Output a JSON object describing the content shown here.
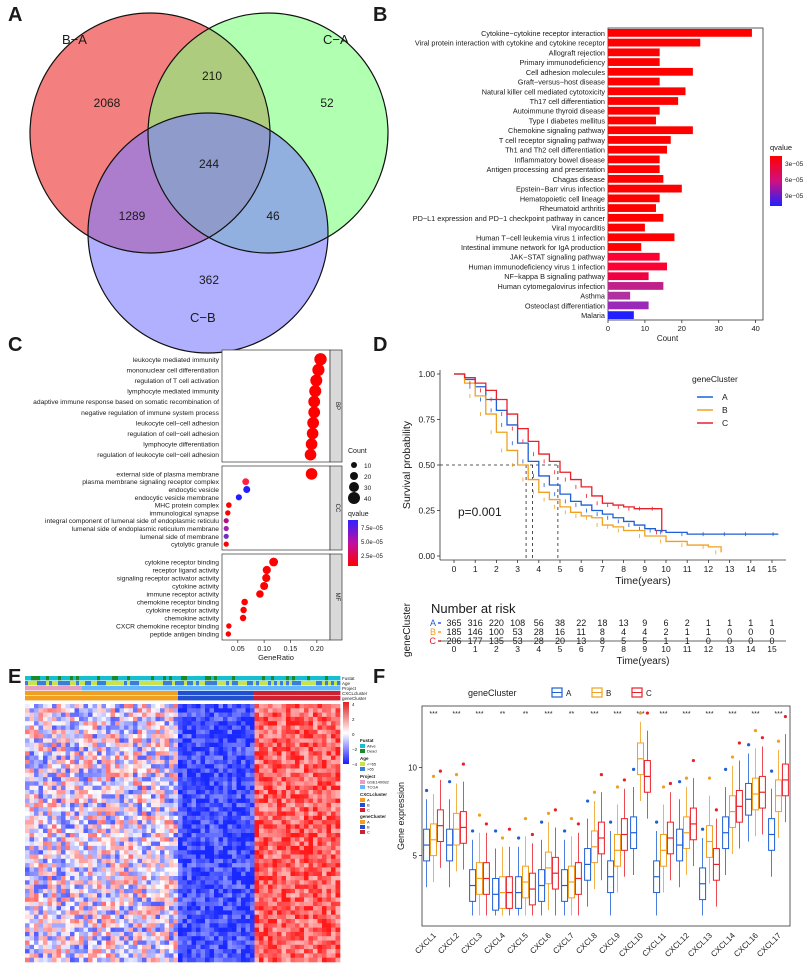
{
  "panels": {
    "a": "A",
    "b": "B",
    "c": "C",
    "d": "D",
    "e": "E",
    "f": "F"
  },
  "colors": {
    "clusterA": "#1f5fd6",
    "clusterB": "#f0a020",
    "clusterC": "#e8202a",
    "vennBA": "#f26d6d",
    "vennCA": "#7dff7d",
    "vennCB": "#7b7bff"
  },
  "chart_data": [
    {
      "id": "venn",
      "type": "venn",
      "sets": [
        "B−A",
        "C−A",
        "C−B"
      ],
      "regions": {
        "only_BA": 2068,
        "BA_CA": 210,
        "only_CA": 52,
        "BA_CB": 1289,
        "all": 244,
        "CA_CB": 46,
        "only_CB": 362
      }
    },
    {
      "id": "kegg",
      "type": "bar",
      "orientation": "horizontal",
      "xlabel": "Count",
      "xticks": [
        0,
        10,
        20,
        30,
        40
      ],
      "xlim": [
        0,
        42
      ],
      "legend_title": "qvalue",
      "legend_ticks": [
        "3e−05",
        "6e−05",
        "9e−05"
      ],
      "categories": [
        "Cytokine−cytokine receptor interaction",
        "Viral protein interaction with cytokine and cytokine receptor",
        "Allograft rejection",
        "Primary immunodeficiency",
        "Cell adhesion molecules",
        "Graft−versus−host disease",
        "Natural killer cell mediated cytotoxicity",
        "Th17 cell differentiation",
        "Autoimmune thyroid disease",
        "Type I diabetes mellitus",
        "Chemokine signaling pathway",
        "T cell receptor signaling pathway",
        "Th1 and Th2 cell differentiation",
        "Inflammatory bowel disease",
        "Antigen processing and presentation",
        "Chagas disease",
        "Epstein−Barr virus infection",
        "Hematopoietic cell lineage",
        "Rheumatoid arthritis",
        "PD−L1 expression and PD−1 checkpoint pathway in cancer",
        "Viral myocarditis",
        "Human T−cell leukemia virus 1 infection",
        "Intestinal immune network for IgA production",
        "JAK−STAT signaling pathway",
        "Human immunodeficiency virus 1 infection",
        "NF−kappa B signaling pathway",
        "Human cytomegalovirus infection",
        "Asthma",
        "Osteoclast differentiation",
        "Malaria"
      ],
      "values": [
        39,
        25,
        14,
        14,
        23,
        14,
        21,
        19,
        14,
        13,
        23,
        17,
        16,
        14,
        14,
        15,
        20,
        14,
        13,
        15,
        10,
        18,
        9,
        14,
        16,
        11,
        15,
        6,
        11,
        7
      ],
      "qcolors": [
        "#ff0000",
        "#ff0000",
        "#ff0000",
        "#ff0000",
        "#ff0000",
        "#ff0000",
        "#ff0000",
        "#ff0000",
        "#ff0000",
        "#ff0000",
        "#ff0000",
        "#ff0000",
        "#ff0000",
        "#ff0000",
        "#ff0000",
        "#ff0000",
        "#ff0000",
        "#ff0000",
        "#ff0000",
        "#ff0000",
        "#ff0000",
        "#ff0000",
        "#ff0000",
        "#ff0033",
        "#ff0033",
        "#f00040",
        "#c0208a",
        "#b030a0",
        "#9a28b8",
        "#2020ff"
      ]
    },
    {
      "id": "go",
      "type": "scatter",
      "xlabel": "GeneRatio",
      "xticks": [
        0.05,
        0.1,
        0.15,
        0.2
      ],
      "xlim": [
        0.02,
        0.225
      ],
      "size_legend_title": "Count",
      "size_legend": [
        10,
        20,
        30,
        40
      ],
      "color_legend_title": "qvalue",
      "color_legend_ticks": [
        "7.5e−05",
        "5.0e−05",
        "2.5e−05"
      ],
      "groups": [
        {
          "name": "BP",
          "terms": [
            "leukocyte mediated immunity",
            "mononuclear cell differentiation",
            "regulation of T cell activation",
            "lymphocyte mediated immunity",
            "adaptive immune response based on somatic recombination of immune receptors built from immunoglobulin superfamily domains",
            "negative regulation of immune system process",
            "leukocyte cell−cell adhesion",
            "regulation of cell−cell adhesion",
            "lymphocyte differentiation",
            "regulation of leukocyte cell−cell adhesion"
          ],
          "ratio": [
            0.207,
            0.203,
            0.199,
            0.197,
            0.195,
            0.195,
            0.193,
            0.192,
            0.19,
            0.188
          ],
          "count": [
            42,
            41,
            40,
            40,
            39,
            39,
            39,
            38,
            38,
            38
          ],
          "q": [
            "#ff0000",
            "#ff0000",
            "#ff0000",
            "#ff0000",
            "#ff0000",
            "#ff0000",
            "#ff0000",
            "#ff0000",
            "#ff0000",
            "#ff0000"
          ]
        },
        {
          "name": "CC",
          "terms": [
            "external side of plasma membrane",
            "plasma membrane signaling receptor complex",
            "endocytic vesicle",
            "endocytic vesicle membrane",
            "MHC protein complex",
            "immunological synapse",
            "integral component of lumenal side of endoplasmic reticulum membrane",
            "lumenal side of endoplasmic reticulum membrane",
            "lumenal side of membrane",
            "cytolytic granule"
          ],
          "ratio": [
            0.19,
            0.065,
            0.067,
            0.052,
            0.033,
            0.031,
            0.028,
            0.028,
            0.028,
            0.028
          ],
          "count": [
            38,
            14,
            15,
            11,
            8,
            7,
            6,
            6,
            6,
            6
          ],
          "q": [
            "#ff0000",
            "#ff2040",
            "#2020ff",
            "#2020ff",
            "#ff0000",
            "#ff0000",
            "#b0108a",
            "#a020b0",
            "#7030c0",
            "#ff0000"
          ]
        },
        {
          "name": "MF",
          "terms": [
            "cytokine receptor binding",
            "receptor ligand activity",
            "signaling receptor activator activity",
            "cytokine activity",
            "immune receptor activity",
            "chemokine receptor binding",
            "cytokine receptor activity",
            "chemokine activity",
            "CXCR chemokine receptor binding",
            "peptide antigen binding"
          ],
          "ratio": [
            0.118,
            0.105,
            0.104,
            0.1,
            0.092,
            0.063,
            0.061,
            0.06,
            0.033,
            0.032
          ],
          "count": [
            24,
            21,
            21,
            20,
            18,
            13,
            12,
            12,
            7,
            7
          ],
          "q": [
            "#ff0000",
            "#ff0000",
            "#ff0000",
            "#ff0000",
            "#ff0000",
            "#ff0000",
            "#ff0000",
            "#ff0000",
            "#ff0000",
            "#ff0000"
          ]
        }
      ]
    },
    {
      "id": "km",
      "type": "line",
      "ylabel": "Survival probability",
      "xlabel": "Time(years)",
      "yticks": [
        "0.00",
        "0.25",
        "0.50",
        "0.75",
        "1.00"
      ],
      "xticks": [
        0,
        1,
        2,
        3,
        4,
        5,
        6,
        7,
        8,
        9,
        10,
        11,
        12,
        13,
        14,
        15
      ],
      "legend_title": "geneCluster",
      "pvalue": "p=0.001",
      "series": [
        {
          "name": "A",
          "x": [
            0,
            0.5,
            1,
            1.5,
            2,
            2.5,
            3,
            3.5,
            4,
            4.5,
            5,
            5.5,
            6,
            6.5,
            7,
            7.5,
            8,
            8.5,
            9,
            9.5,
            10,
            11,
            12,
            13,
            14,
            15.3
          ],
          "y": [
            1,
            0.97,
            0.93,
            0.86,
            0.8,
            0.72,
            0.62,
            0.52,
            0.44,
            0.39,
            0.34,
            0.3,
            0.28,
            0.25,
            0.23,
            0.21,
            0.19,
            0.17,
            0.15,
            0.14,
            0.13,
            0.12,
            0.12,
            0.12,
            0.12,
            0.12
          ]
        },
        {
          "name": "B",
          "x": [
            0,
            0.5,
            1,
            1.5,
            2,
            2.5,
            3,
            3.5,
            4,
            4.5,
            5,
            5.5,
            6,
            6.5,
            7,
            7.5,
            8,
            9,
            10,
            11,
            12,
            12.6
          ],
          "y": [
            1,
            0.95,
            0.88,
            0.78,
            0.68,
            0.58,
            0.5,
            0.42,
            0.35,
            0.31,
            0.27,
            0.24,
            0.22,
            0.21,
            0.17,
            0.16,
            0.14,
            0.11,
            0.08,
            0.06,
            0.05,
            0.02
          ]
        },
        {
          "name": "C",
          "x": [
            0,
            0.5,
            1,
            1.5,
            2,
            2.5,
            3,
            3.5,
            4,
            4.5,
            5,
            5.5,
            6,
            6.5,
            7,
            7.5,
            8,
            8.5,
            9,
            9.6,
            9.8
          ],
          "y": [
            1,
            0.98,
            0.95,
            0.91,
            0.86,
            0.78,
            0.7,
            0.63,
            0.56,
            0.52,
            0.46,
            0.42,
            0.38,
            0.33,
            0.29,
            0.28,
            0.27,
            0.26,
            0.26,
            0.26,
            0.13
          ]
        }
      ],
      "medians": [
        3.7,
        3.4,
        4.9
      ],
      "risk_title": "Number at risk",
      "risk_ylabel": "geneCluster",
      "risk_xlabel": "Time(years)",
      "risk": {
        "A": [
          365,
          316,
          220,
          108,
          56,
          38,
          22,
          18,
          13,
          9,
          6,
          2,
          1,
          1,
          1,
          1
        ],
        "B": [
          185,
          146,
          100,
          53,
          28,
          16,
          11,
          8,
          4,
          4,
          2,
          1,
          1,
          0,
          0,
          0
        ],
        "C": [
          206,
          177,
          135,
          53,
          28,
          20,
          13,
          8,
          5,
          5,
          1,
          1,
          0,
          0,
          0,
          0
        ]
      }
    },
    {
      "id": "heatmap",
      "type": "heatmap",
      "annotation_rows": [
        "Fustat",
        "Age",
        "Project",
        "CXCLcluster",
        "geneCluster"
      ],
      "legend": {
        "Fustat": [
          "Alive",
          "Dead"
        ],
        "Age": [
          "<=65",
          ">65"
        ],
        "Project": [
          "GSE140082",
          "TCGA"
        ],
        "CXCLcluster": [
          "A",
          "B",
          "C"
        ],
        "geneCluster": [
          "A",
          "B",
          "C"
        ],
        "scale": [
          "4",
          "2",
          "0",
          "−2",
          "−4"
        ]
      }
    },
    {
      "id": "boxplot",
      "type": "box",
      "ylabel": "Gene expression",
      "yticks": [
        5,
        10
      ],
      "ylim": [
        1,
        13.5
      ],
      "legend_title": "geneCluster",
      "legend": [
        "A",
        "B",
        "C"
      ],
      "genes": [
        "CXCL1",
        "CXCL2",
        "CXCL3",
        "CXCL4",
        "CXCL5",
        "CXCL6",
        "CXCL7",
        "CXCL8",
        "CXCL9",
        "CXCL10",
        "CXCL11",
        "CXCL12",
        "CXCL13",
        "CXCL14",
        "CXCL16",
        "CXCL17"
      ],
      "signif": [
        "***",
        "***",
        "***",
        "**",
        "**",
        "***",
        "**",
        "***",
        "***",
        "***",
        "***",
        "***",
        "***",
        "***",
        "***",
        "***"
      ],
      "medians": {
        "A": [
          5.6,
          5.6,
          3.3,
          2.8,
          2.9,
          3.3,
          3.3,
          4.5,
          3.8,
          6.3,
          3.8,
          5.6,
          3.4,
          6.3,
          8.2,
          6.2
        ],
        "B": [
          5.9,
          6.5,
          3.7,
          2.9,
          3.5,
          4.3,
          3.5,
          5.5,
          5.3,
          10.5,
          5.3,
          6.3,
          5.8,
          7.5,
          8.5,
          8.4
        ],
        "C": [
          6.7,
          6.6,
          3.7,
          2.9,
          3.1,
          4.0,
          3.7,
          6.0,
          6.2,
          9.5,
          6.0,
          6.8,
          4.5,
          7.8,
          8.6,
          9.3
        ]
      }
    }
  ]
}
